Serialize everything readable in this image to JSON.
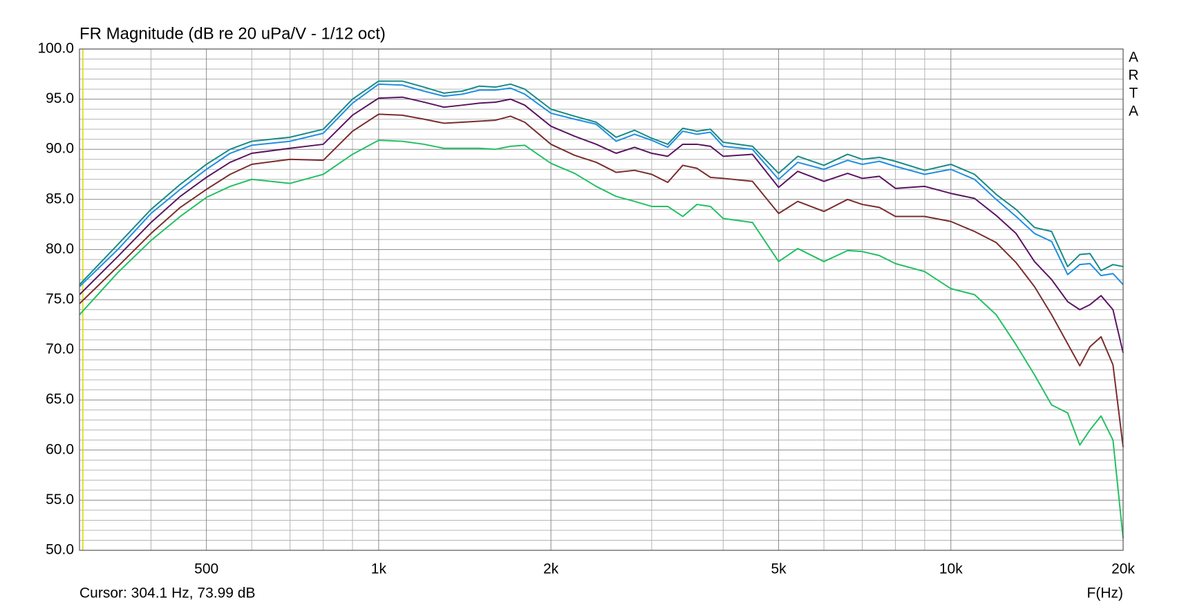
{
  "chart_data": {
    "type": "line",
    "title": "FR Magnitude (dB re 20 uPa/V - 1/12 oct)",
    "x_label": "F(Hz)",
    "side_label": [
      "A",
      "R",
      "T",
      "A"
    ],
    "cursor": {
      "x": 304.1,
      "text": "Cursor: 304.1 Hz, 73.99 dB",
      "color": "#d8d800"
    },
    "log_x": true,
    "grid": true,
    "xlim": [
      300,
      20000
    ],
    "ylim": [
      50,
      100
    ],
    "xticks": [
      500,
      {
        "value": 1000,
        "label": "1k"
      },
      {
        "value": 2000,
        "label": "2k"
      },
      {
        "value": 5000,
        "label": "5k"
      },
      {
        "value": 10000,
        "label": "10k"
      },
      {
        "value": 20000,
        "label": "20k"
      }
    ],
    "xgrid_minor": [
      400,
      600,
      700,
      800,
      900,
      3000,
      4000,
      6000,
      7000,
      8000,
      9000
    ],
    "yticks": [
      {
        "value": 50,
        "label": "50.0"
      },
      {
        "value": 55,
        "label": "55.0"
      },
      {
        "value": 60,
        "label": "60.0"
      },
      {
        "value": 65,
        "label": "65.0"
      },
      {
        "value": 70,
        "label": "70.0"
      },
      {
        "value": 75,
        "label": "75.0"
      },
      {
        "value": 80,
        "label": "80.0"
      },
      {
        "value": 85,
        "label": "85.0"
      },
      {
        "value": 90,
        "label": "90.0"
      },
      {
        "value": 95,
        "label": "95.0"
      },
      {
        "value": 100,
        "label": "100.0"
      }
    ],
    "ygrid_minor": [
      51,
      52,
      53,
      54,
      56,
      57,
      58,
      59,
      61,
      62,
      63,
      64,
      66,
      67,
      68,
      69,
      71,
      72,
      73,
      74,
      76,
      77,
      78,
      79,
      81,
      82,
      83,
      84,
      86,
      87,
      88,
      89,
      91,
      92,
      93,
      94,
      96,
      97,
      98,
      99
    ],
    "x": [
      300,
      350,
      400,
      450,
      500,
      550,
      600,
      700,
      800,
      900,
      1000,
      1100,
      1200,
      1300,
      1400,
      1500,
      1600,
      1700,
      1800,
      2000,
      2200,
      2400,
      2600,
      2800,
      3000,
      3200,
      3400,
      3600,
      3800,
      4000,
      4500,
      5000,
      5400,
      6000,
      6600,
      7000,
      7500,
      8000,
      9000,
      10000,
      11000,
      12000,
      13000,
      14000,
      15000,
      16000,
      16800,
      17500,
      18300,
      19200,
      20000
    ],
    "series": [
      {
        "color": "#168a86",
        "values": [
          76.5,
          80.5,
          84,
          86.5,
          88.5,
          90,
          90.8,
          91.2,
          92,
          95,
          96.8,
          96.8,
          96.2,
          95.6,
          95.8,
          96.3,
          96.2,
          96.5,
          96,
          94,
          93.3,
          92.7,
          91.2,
          91.9,
          91.1,
          90.5,
          92.1,
          91.8,
          92.0,
          90.7,
          90.3,
          87.6,
          89.3,
          88.4,
          89.5,
          89.0,
          89.2,
          88.8,
          87.9,
          88.5,
          87.5,
          85.5,
          84,
          82.2,
          81.8,
          78.3,
          79.5,
          79.6,
          77.9,
          78.5,
          78.3
        ]
      },
      {
        "color": "#1e8ee0",
        "values": [
          76.3,
          80,
          83.6,
          86,
          88,
          89.6,
          90.4,
          90.8,
          91.6,
          94.6,
          96.5,
          96.4,
          95.8,
          95.3,
          95.5,
          95.9,
          95.9,
          96.1,
          95.5,
          93.6,
          93,
          92.5,
          90.8,
          91.5,
          90.9,
          90.2,
          91.8,
          91.5,
          91.7,
          90.3,
          90.0,
          87.0,
          88.7,
          88.0,
          88.9,
          88.5,
          88.8,
          88.3,
          87.5,
          88.0,
          87.0,
          85.0,
          83.3,
          81.6,
          80.8,
          77.5,
          78.5,
          78.6,
          77.4,
          77.6,
          76.5
        ]
      },
      {
        "color": "#5a1462",
        "values": [
          75.5,
          79.3,
          82.7,
          85.3,
          87.2,
          88.7,
          89.6,
          90.1,
          90.5,
          93.4,
          95.1,
          95.2,
          94.7,
          94.2,
          94.4,
          94.6,
          94.7,
          95,
          94.4,
          92.3,
          91.3,
          90.5,
          89.6,
          90.2,
          89.6,
          89.3,
          90.5,
          90.5,
          90.3,
          89.3,
          89.5,
          86.2,
          87.8,
          86.8,
          87.6,
          87.1,
          87.3,
          86.1,
          86.3,
          85.6,
          85.1,
          83.4,
          81.6,
          78.8,
          77.0,
          74.8,
          74.0,
          74.5,
          75.4,
          74.0,
          69.7
        ]
      },
      {
        "color": "#7a2c2c",
        "values": [
          74.6,
          78.3,
          81.6,
          84.2,
          86,
          87.5,
          88.5,
          89,
          88.9,
          91.8,
          93.5,
          93.4,
          93.0,
          92.6,
          92.7,
          92.8,
          92.9,
          93.3,
          92.7,
          90.5,
          89.4,
          88.7,
          87.7,
          87.9,
          87.5,
          86.7,
          88.4,
          88.1,
          87.2,
          87.1,
          86.8,
          83.6,
          84.8,
          83.8,
          85.0,
          84.5,
          84.2,
          83.3,
          83.3,
          82.8,
          81.8,
          80.7,
          78.7,
          76.3,
          73.5,
          70.6,
          68.4,
          70.3,
          71.3,
          68.5,
          60.3
        ]
      },
      {
        "color": "#22c062",
        "values": [
          73.5,
          77.7,
          80.9,
          83.3,
          85.2,
          86.3,
          87.0,
          86.6,
          87.5,
          89.5,
          90.9,
          90.8,
          90.5,
          90.1,
          90.1,
          90.1,
          90.0,
          90.3,
          90.4,
          88.6,
          87.6,
          86.3,
          85.3,
          84.8,
          84.3,
          84.3,
          83.3,
          84.5,
          84.3,
          83.1,
          82.7,
          78.8,
          80.1,
          78.8,
          79.9,
          79.8,
          79.4,
          78.6,
          77.8,
          76.1,
          75.5,
          73.5,
          70.5,
          67.5,
          64.5,
          63.7,
          60.5,
          62.0,
          63.4,
          61.0,
          51.2
        ]
      }
    ]
  }
}
